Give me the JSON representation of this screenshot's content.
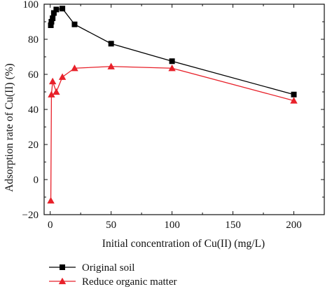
{
  "chart_data": {
    "type": "line",
    "title": "",
    "xlabel": "Initial concentration of Cu(II) (mg/L)",
    "ylabel": "Adsorption rate of Cu(II) (%)",
    "xlim": [
      -5,
      225
    ],
    "ylim": [
      -20,
      100
    ],
    "xticks": [
      0,
      50,
      100,
      150,
      200
    ],
    "yticks": [
      -20,
      0,
      20,
      40,
      60,
      80,
      100
    ],
    "xticklabels": [
      "0",
      "50",
      "100",
      "150",
      "200"
    ],
    "yticklabels": [
      "−20",
      "0",
      "20",
      "40",
      "60",
      "80",
      "100"
    ],
    "grid": false,
    "legend_position": "bottom-left, below plot",
    "series": [
      {
        "name": "Original soil",
        "color": "#000000",
        "marker": "square",
        "x": [
          0.5,
          1,
          2,
          3,
          5,
          10,
          20,
          50,
          100,
          200
        ],
        "y": [
          88,
          90,
          92,
          95,
          97,
          97.5,
          88.5,
          77.5,
          67.5,
          48.5
        ]
      },
      {
        "name": "Reduce organic matter",
        "color": "#e8212a",
        "marker": "triangle",
        "x": [
          0.5,
          1,
          2,
          5,
          10,
          20,
          50,
          100,
          200
        ],
        "y": [
          -12,
          48.5,
          56,
          50,
          58.5,
          63.5,
          64.5,
          63.5,
          45
        ]
      }
    ]
  }
}
